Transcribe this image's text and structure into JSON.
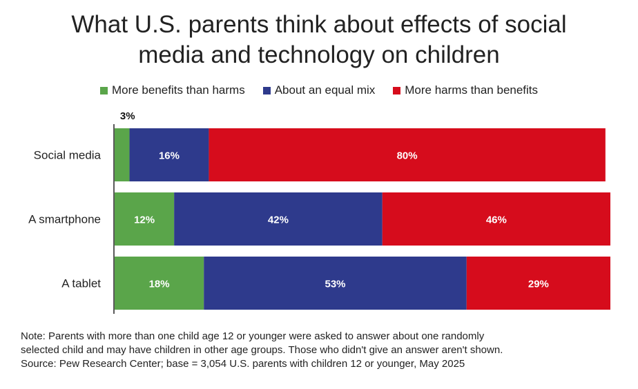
{
  "chart_data": {
    "type": "bar",
    "orientation": "horizontal",
    "stacked": true,
    "title": "What U.S. parents think about effects of social media and technology on children",
    "title_lines": [
      "What U.S. parents think about effects of social",
      "media and technology on children"
    ],
    "categories": [
      "Social media",
      "A smartphone",
      "A tablet"
    ],
    "series": [
      {
        "name": "More benefits than harms",
        "color": "#5aa54a",
        "values": [
          3,
          12,
          18
        ],
        "labels": [
          "3%",
          "12%",
          "18%"
        ]
      },
      {
        "name": "About an equal mix",
        "color": "#2e3a8c",
        "values": [
          16,
          42,
          53
        ],
        "labels": [
          "16%",
          "42%",
          "53%"
        ]
      },
      {
        "name": "More harms than benefits",
        "color": "#d60c1c",
        "values": [
          80,
          46,
          29
        ],
        "labels": [
          "80%",
          "46%",
          "29%"
        ]
      }
    ],
    "xlim": [
      0,
      100
    ],
    "grid": false,
    "legend_position": "top"
  },
  "note": {
    "line1": "Note: Parents with more than one child age 12 or younger were asked to answer about one randomly",
    "line2": "selected child and may have children in other age groups. Those who didn't give an answer aren't shown.",
    "line3": "Source: Pew Research Center; base = 3,054 U.S. parents with children 12 or younger, May 2025"
  }
}
